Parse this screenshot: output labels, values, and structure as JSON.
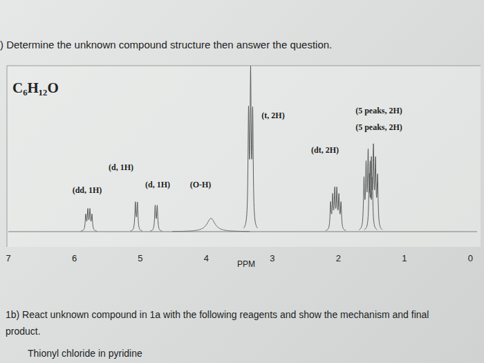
{
  "header": {
    "instruction": ") Determine the unknown compound structure then answer the question."
  },
  "chart_data": {
    "type": "nmr",
    "title": "C₆H₁₂O",
    "x_label": "PPM",
    "x": [
      5.78,
      5.06,
      4.76,
      3.93,
      3.33,
      2.04,
      1.55,
      1.47
    ],
    "values": [
      14,
      18,
      16,
      8,
      100,
      27,
      50,
      53
    ],
    "peak_labels": [
      "(dd, 1H)",
      "(d, 1H)",
      "(d, 1H)",
      "(O-H)",
      "(t, 2H)",
      "(dt, 2H)",
      "(5 peaks, 2H)",
      "(5 peaks, 2H)"
    ],
    "xlim": [
      7,
      -0.1
    ],
    "xticks": [
      7,
      6,
      5,
      4,
      3,
      2,
      1,
      0
    ],
    "ylim": [
      0,
      100
    ],
    "tick_labels": "x",
    "color": "#5a5a5a"
  },
  "question": {
    "lines": [
      "1b) React unknown compound in 1a with the following reagents and show the mechanism and final",
      "product."
    ],
    "reagent": "Thionyl chloride in pyridine"
  }
}
